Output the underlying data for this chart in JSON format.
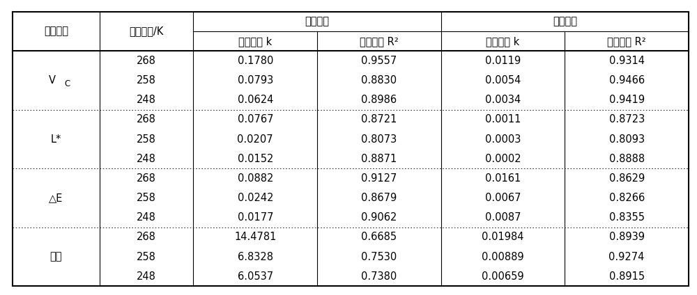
{
  "col0_header": "品质指标",
  "col1_header": "贮藏温度/K",
  "zero_order_header": "零级反应",
  "first_order_header": "一级反应",
  "sub_header_k": "速率常数 k",
  "sub_header_r2": "决定系数 R²",
  "groups": [
    {
      "label_main": "V",
      "label_sub": "C",
      "rows": [
        {
          "temp": "268",
          "z_k": "0.1780",
          "z_r2": "0.9557",
          "f_k": "0.0119",
          "f_r2": "0.9314"
        },
        {
          "temp": "258",
          "z_k": "0.0793",
          "z_r2": "0.8830",
          "f_k": "0.0054",
          "f_r2": "0.9466"
        },
        {
          "temp": "248",
          "z_k": "0.0624",
          "z_r2": "0.8986",
          "f_k": "0.0034",
          "f_r2": "0.9419"
        }
      ]
    },
    {
      "label_main": "L*",
      "label_sub": "",
      "rows": [
        {
          "temp": "268",
          "z_k": "0.0767",
          "z_r2": "0.8721",
          "f_k": "0.0011",
          "f_r2": "0.8723"
        },
        {
          "temp": "258",
          "z_k": "0.0207",
          "z_r2": "0.8073",
          "f_k": "0.0003",
          "f_r2": "0.8093"
        },
        {
          "temp": "248",
          "z_k": "0.0152",
          "z_r2": "0.8871",
          "f_k": "0.0002",
          "f_r2": "0.8888"
        }
      ]
    },
    {
      "label_main": "△E",
      "label_sub": "",
      "rows": [
        {
          "temp": "268",
          "z_k": "0.0882",
          "z_r2": "0.9127",
          "f_k": "0.0161",
          "f_r2": "0.8629"
        },
        {
          "temp": "258",
          "z_k": "0.0242",
          "z_r2": "0.8679",
          "f_k": "0.0067",
          "f_r2": "0.8266"
        },
        {
          "temp": "248",
          "z_k": "0.0177",
          "z_r2": "0.9062",
          "f_k": "0.0087",
          "f_r2": "0.8355"
        }
      ]
    },
    {
      "label_main": "硬度",
      "label_sub": "",
      "rows": [
        {
          "temp": "268",
          "z_k": "14.4781",
          "z_r2": "0.6685",
          "f_k": "0.01984",
          "f_r2": "0.8939"
        },
        {
          "temp": "258",
          "z_k": "6.8328",
          "z_r2": "0.7530",
          "f_k": "0.00889",
          "f_r2": "0.9274"
        },
        {
          "temp": "248",
          "z_k": "6.0537",
          "z_r2": "0.7380",
          "f_k": "0.00659",
          "f_r2": "0.8915"
        }
      ]
    }
  ],
  "bg_color": "#ffffff",
  "text_color": "#000000",
  "border_color": "#000000",
  "font_size": 10.5,
  "sub_font_size": 8.5
}
